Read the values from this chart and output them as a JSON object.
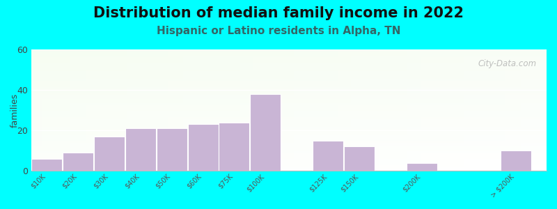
{
  "title": "Distribution of median family income in 2022",
  "subtitle": "Hispanic or Latino residents in Alpha, TN",
  "ylabel": "families",
  "background_outer": "#00FFFF",
  "bar_color": "#c9b5d5",
  "bar_edge_color": "#ffffff",
  "categories": [
    "$10K",
    "$20K",
    "$30K",
    "$40K",
    "$50K",
    "$60K",
    "$75K",
    "$100K",
    "$125K",
    "$150K",
    "$200K",
    "> $200K"
  ],
  "values": [
    6,
    9,
    17,
    21,
    21,
    23,
    24,
    38,
    15,
    12,
    4,
    10
  ],
  "ylim": [
    0,
    60
  ],
  "yticks": [
    0,
    20,
    40,
    60
  ],
  "title_fontsize": 15,
  "subtitle_fontsize": 11,
  "subtitle_color": "#336666",
  "watermark": "City-Data.com",
  "x_positions": [
    0,
    1,
    2,
    3,
    4,
    5,
    6,
    7,
    9,
    10,
    12,
    15
  ],
  "bar_width": 0.98
}
